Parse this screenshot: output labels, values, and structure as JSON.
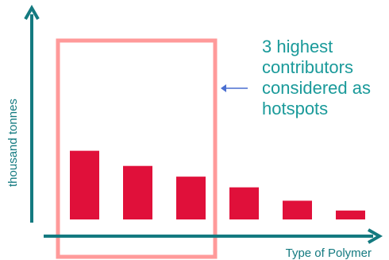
{
  "chart_data": {
    "type": "bar",
    "categories": [
      "",
      "",
      "",
      "",
      "",
      ""
    ],
    "values": [
      77,
      60,
      48,
      36,
      21,
      10
    ],
    "ylim": [
      0,
      230
    ],
    "xlabel": "Type of Polymer",
    "ylabel": "thousand tonnes",
    "legend": "none",
    "grid": false,
    "highlight": {
      "from_index": 0,
      "to_index": 2
    }
  },
  "annotation": {
    "lines": [
      "3 highest",
      "contributors",
      "considered as",
      "hotspots"
    ]
  },
  "colors": {
    "bar": "#e0103a",
    "axis": "#147a80",
    "highlight_box": "#ff9a9a",
    "annotation_text": "#1a9a9a",
    "arrow": "#4a6fd1"
  }
}
